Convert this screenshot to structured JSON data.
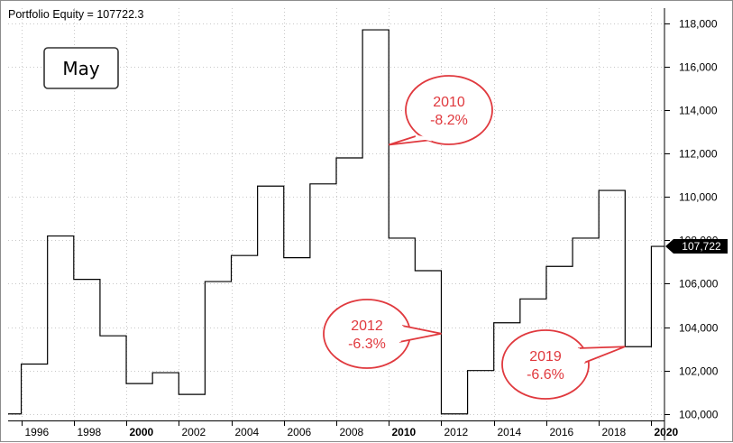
{
  "chart_data": {
    "type": "line",
    "title": "Portfolio Equity = 107722.3",
    "month_label": "May",
    "last_value_label": "107,722",
    "step": true,
    "grid": true,
    "xlim": [
      1995.5,
      2020.5
    ],
    "ylim": [
      99700,
      118700
    ],
    "x_ticks": [
      {
        "label": "1996",
        "value": 1996,
        "bold": false
      },
      {
        "label": "1998",
        "value": 1998,
        "bold": false
      },
      {
        "label": "2000",
        "value": 2000,
        "bold": true
      },
      {
        "label": "2002",
        "value": 2002,
        "bold": false
      },
      {
        "label": "2004",
        "value": 2004,
        "bold": false
      },
      {
        "label": "2006",
        "value": 2006,
        "bold": false
      },
      {
        "label": "2008",
        "value": 2008,
        "bold": false
      },
      {
        "label": "2010",
        "value": 2010,
        "bold": true
      },
      {
        "label": "2012",
        "value": 2012,
        "bold": false
      },
      {
        "label": "2014",
        "value": 2014,
        "bold": false
      },
      {
        "label": "2016",
        "value": 2016,
        "bold": false
      },
      {
        "label": "2018",
        "value": 2018,
        "bold": false
      },
      {
        "label": "2020",
        "value": 2020,
        "bold": true
      }
    ],
    "y_ticks": [
      {
        "label": "100,000",
        "value": 100000
      },
      {
        "label": "102,000",
        "value": 102000
      },
      {
        "label": "104,000",
        "value": 104000
      },
      {
        "label": "106,000",
        "value": 106000
      },
      {
        "label": "108,000",
        "value": 108000
      },
      {
        "label": "110,000",
        "value": 110000
      },
      {
        "label": "112,000",
        "value": 112000
      },
      {
        "label": "114,000",
        "value": 114000
      },
      {
        "label": "116,000",
        "value": 116000
      },
      {
        "label": "118,000",
        "value": 118000
      }
    ],
    "x": [
      1995.5,
      1996,
      1997,
      1998,
      1999,
      2000,
      2001,
      2002,
      2003,
      2004,
      2005,
      2006,
      2007,
      2008,
      2009,
      2010,
      2011,
      2012,
      2013,
      2014,
      2015,
      2016,
      2017,
      2018,
      2019,
      2020
    ],
    "values": [
      100000,
      102300,
      108200,
      106200,
      103600,
      101400,
      101900,
      100900,
      106100,
      107300,
      110500,
      107200,
      110600,
      111800,
      117700,
      108100,
      106600,
      100000,
      102000,
      104200,
      105300,
      106800,
      108100,
      110300,
      103100,
      107722
    ],
    "annotations": [
      {
        "year": "2010",
        "change": "-8.2%",
        "x": 2010,
        "y": 112400
      },
      {
        "year": "2012",
        "change": "-6.3%",
        "x": 2012,
        "y": 103700
      },
      {
        "year": "2019",
        "change": "-6.6%",
        "x": 2019,
        "y": 103100
      }
    ],
    "colors": {
      "line": "#000000",
      "grid": "#c8c8c8",
      "callout": "#e0393e",
      "last_label_bg": "#000000"
    }
  }
}
